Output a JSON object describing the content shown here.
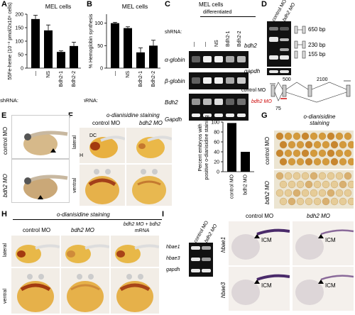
{
  "panel_labels": {
    "A": "A",
    "B": "B",
    "C": "C",
    "D": "D",
    "E": "E",
    "F": "F",
    "G": "G",
    "H": "H",
    "I": "I"
  },
  "chart_data": [
    {
      "type": "bar",
      "title": "MEL cells",
      "ylabel": "55Fe-heme (10⁻³ pmol/2x10⁶ cells)",
      "categories": [
        "—",
        "NS",
        "Bdh2-1",
        "Bdh2-2"
      ],
      "values": [
        182,
        140,
        60,
        82
      ],
      "errors": [
        14,
        20,
        4,
        14
      ],
      "ylim": [
        0,
        200
      ],
      "yticks": [
        "0",
        "50",
        "100",
        "150",
        "200"
      ],
      "xlabel": "shRNA:"
    },
    {
      "type": "bar",
      "title": "MEL cells",
      "ylabel": "% Hemoglobin synthesis",
      "categories": [
        "—",
        "NS",
        "Bdh2-1",
        "Bdh2-2"
      ],
      "values": [
        100,
        89,
        35,
        50
      ],
      "errors": [
        2,
        3,
        10,
        12
      ],
      "ylim": [
        0,
        120
      ],
      "yticks": [
        "0",
        "50",
        "100"
      ],
      "xlabel": "shRNA:"
    },
    {
      "type": "bar",
      "ylabel": "Percent embryos with positive o-dianisidine staining",
      "categories": [
        "control MO",
        "bdh2 MO"
      ],
      "values": [
        98,
        40
      ],
      "ylim": [
        0,
        100
      ],
      "yticks": [
        "0",
        "20",
        "40",
        "60",
        "80",
        "100"
      ]
    }
  ],
  "panelC": {
    "title": "MEL cells",
    "subtitle": "differentiated",
    "shrna_label": "shRNA:",
    "lanes": [
      "—",
      "—",
      "NS",
      "Bdh2-1",
      "Bdh2-2"
    ],
    "rows": [
      "α-globin",
      "β-globin",
      "Bdh2",
      "Gapdh"
    ]
  },
  "panelD": {
    "lanes": [
      "control MO",
      "bdh2 MO"
    ],
    "rows": [
      "bdh2",
      "gapdh"
    ],
    "sizes": [
      "650 bp",
      "230 bp",
      "155 bp"
    ],
    "control_label": "control MO",
    "bdh2_label": "bdh2 MO",
    "pos_500": "500",
    "pos_2100": "2100",
    "pos_75": "75"
  },
  "panelE": {
    "rows": [
      "control MO",
      "bdh2 MO"
    ]
  },
  "panelF": {
    "title": "o-dianisidine staining",
    "cols": [
      "control MO",
      "bdh2 MO"
    ],
    "rows": [
      "lateral",
      "ventral"
    ],
    "dc": "DC",
    "h": "H"
  },
  "panelG": {
    "title": "o-dianisidine staining",
    "rows": [
      "control MO",
      "bdh2 MO"
    ]
  },
  "panelH": {
    "title": "o-dianisidine staining",
    "cols": [
      "control MO",
      "bdh2 MO",
      "bdh2 MO + bdh2 mRNA"
    ],
    "rows": [
      "lateral",
      "ventral"
    ]
  },
  "panelI": {
    "lanes": [
      "control MO",
      "bdh2 MO"
    ],
    "gel_rows": [
      "hbae1",
      "hbae3",
      "gapdh"
    ],
    "cols": [
      "control MO",
      "bdh2 MO"
    ],
    "rows": [
      "hbae1",
      "hbae3"
    ],
    "icm": "ICM"
  },
  "colors": {
    "embryo": "#e8c07a",
    "stain": "#b5541c",
    "gel": "#111111",
    "wish_bg": "#f4f0ec"
  }
}
